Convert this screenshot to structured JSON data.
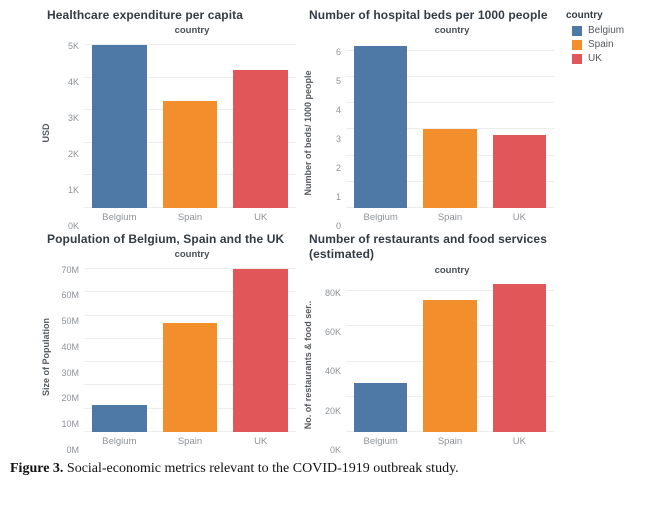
{
  "colors": {
    "belgium": "#4e79a7",
    "spain": "#f28e2b",
    "uk": "#e15759"
  },
  "legend": {
    "title": "country",
    "position": "top-right",
    "items": [
      {
        "label": "Belgium",
        "color": "#4e79a7"
      },
      {
        "label": "Spain",
        "color": "#f28e2b"
      },
      {
        "label": "UK",
        "color": "#e15759"
      }
    ]
  },
  "chart_data": [
    {
      "type": "bar",
      "title": "Healthcare expenditure per capita",
      "subtitle": "country",
      "categories": [
        "Belgium",
        "Spain",
        "UK"
      ],
      "values": [
        5000,
        3300,
        4250
      ],
      "bar_colors": [
        "#4e79a7",
        "#f28e2b",
        "#e15759"
      ],
      "xlabel": "",
      "ylabel": "USD",
      "yticks": [
        0,
        1000,
        2000,
        3000,
        4000,
        5000
      ],
      "ytick_labels": [
        "0K",
        "1K",
        "2K",
        "3K",
        "4K",
        "5K"
      ],
      "ylim": [
        0,
        5150
      ],
      "grid": true
    },
    {
      "type": "bar",
      "title": "Number of hospital beds per 1000 people",
      "subtitle": "country",
      "categories": [
        "Belgium",
        "Spain",
        "UK"
      ],
      "values": [
        6.2,
        3.0,
        2.8
      ],
      "bar_colors": [
        "#4e79a7",
        "#f28e2b",
        "#e15759"
      ],
      "xlabel": "",
      "ylabel": "Number of beds/ 1000 people",
      "yticks": [
        0,
        1,
        2,
        3,
        4,
        5,
        6
      ],
      "ytick_labels": [
        "0",
        "1",
        "2",
        "3",
        "4",
        "5",
        "6"
      ],
      "ylim": [
        0,
        6.4
      ],
      "grid": true
    },
    {
      "type": "bar",
      "title": "Population of Belgium, Spain and the UK",
      "subtitle": "country",
      "categories": [
        "Belgium",
        "Spain",
        "UK"
      ],
      "values": [
        11500000,
        47000000,
        70000000
      ],
      "bar_colors": [
        "#4e79a7",
        "#f28e2b",
        "#e15759"
      ],
      "xlabel": "",
      "ylabel": "Size of Population",
      "yticks": [
        0,
        10000000,
        20000000,
        30000000,
        40000000,
        50000000,
        60000000,
        70000000
      ],
      "ytick_labels": [
        "0M",
        "10M",
        "20M",
        "30M",
        "40M",
        "50M",
        "60M",
        "70M"
      ],
      "ylim": [
        0,
        72000000
      ],
      "grid": true
    },
    {
      "type": "bar",
      "title": "Number of restaurants and food services (estimated)",
      "subtitle": "country",
      "categories": [
        "Belgium",
        "Spain",
        "UK"
      ],
      "values": [
        28000,
        75000,
        84000
      ],
      "bar_colors": [
        "#4e79a7",
        "#f28e2b",
        "#e15759"
      ],
      "xlabel": "",
      "ylabel": "No. of restaurants & food ser..",
      "yticks": [
        0,
        20000,
        40000,
        60000,
        80000
      ],
      "ytick_labels": [
        "0K",
        "20K",
        "40K",
        "60K",
        "80K"
      ],
      "ylim": [
        0,
        86500
      ],
      "grid": true
    }
  ],
  "caption": {
    "label": "Figure 3.",
    "text": "Social-economic metrics relevant to the COVID-1919 outbreak study."
  }
}
